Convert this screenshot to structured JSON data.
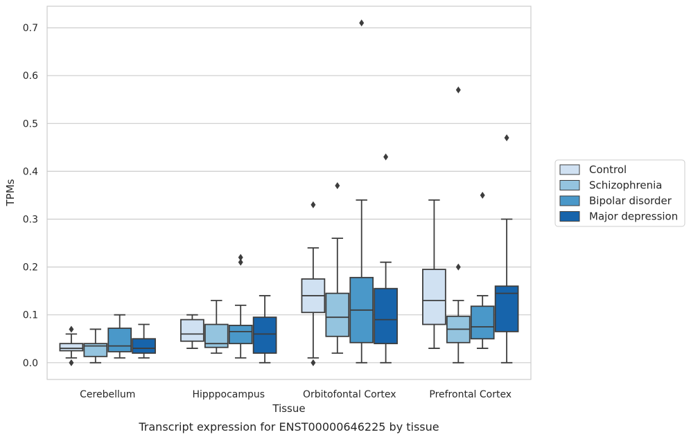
{
  "chart_data": {
    "type": "box",
    "caption": "Transcript expression for ENST00000646225 by tissue",
    "xlabel": "Tissue",
    "ylabel": "TPMs",
    "ylim": [
      -0.035,
      0.745
    ],
    "yticks": [
      "0.0",
      "0.1",
      "0.2",
      "0.3",
      "0.4",
      "0.5",
      "0.6",
      "0.7"
    ],
    "grid": "horizontal",
    "legend_position": "right",
    "categories": [
      "Cerebellum",
      "Hipppocampus",
      "Orbitofontal Cortex",
      "Prefrontal Cortex"
    ],
    "series": [
      {
        "name": "Control",
        "color": "#d0e1f2",
        "boxes": [
          {
            "whislo": 0.01,
            "q1": 0.025,
            "med": 0.03,
            "q3": 0.04,
            "whishi": 0.06,
            "fliers": [
              0.07,
              0.0
            ]
          },
          {
            "whislo": 0.03,
            "q1": 0.045,
            "med": 0.06,
            "q3": 0.09,
            "whishi": 0.1,
            "fliers": []
          },
          {
            "whislo": 0.01,
            "q1": 0.105,
            "med": 0.14,
            "q3": 0.175,
            "whishi": 0.24,
            "fliers": [
              0.33,
              0.0
            ]
          },
          {
            "whislo": 0.03,
            "q1": 0.08,
            "med": 0.13,
            "q3": 0.195,
            "whishi": 0.34,
            "fliers": []
          }
        ]
      },
      {
        "name": "Schizophrenia",
        "color": "#94c4df",
        "boxes": [
          {
            "whislo": 0.0,
            "q1": 0.013,
            "med": 0.035,
            "q3": 0.04,
            "whishi": 0.07,
            "fliers": []
          },
          {
            "whislo": 0.02,
            "q1": 0.032,
            "med": 0.04,
            "q3": 0.08,
            "whishi": 0.13,
            "fliers": []
          },
          {
            "whislo": 0.02,
            "q1": 0.055,
            "med": 0.095,
            "q3": 0.145,
            "whishi": 0.26,
            "fliers": [
              0.37
            ]
          },
          {
            "whislo": 0.0,
            "q1": 0.042,
            "med": 0.07,
            "q3": 0.097,
            "whishi": 0.13,
            "fliers": [
              0.57,
              0.2
            ]
          }
        ]
      },
      {
        "name": "Bipolar disorder",
        "color": "#4a98c9",
        "boxes": [
          {
            "whislo": 0.01,
            "q1": 0.023,
            "med": 0.035,
            "q3": 0.072,
            "whishi": 0.1,
            "fliers": []
          },
          {
            "whislo": 0.01,
            "q1": 0.04,
            "med": 0.065,
            "q3": 0.078,
            "whishi": 0.12,
            "fliers": [
              0.22,
              0.21
            ]
          },
          {
            "whislo": 0.0,
            "q1": 0.042,
            "med": 0.11,
            "q3": 0.178,
            "whishi": 0.34,
            "fliers": [
              0.71
            ]
          },
          {
            "whislo": 0.03,
            "q1": 0.05,
            "med": 0.075,
            "q3": 0.118,
            "whishi": 0.14,
            "fliers": [
              0.35
            ]
          }
        ]
      },
      {
        "name": "Major depression",
        "color": "#1764ab",
        "boxes": [
          {
            "whislo": 0.01,
            "q1": 0.02,
            "med": 0.03,
            "q3": 0.05,
            "whishi": 0.08,
            "fliers": []
          },
          {
            "whislo": 0.0,
            "q1": 0.02,
            "med": 0.06,
            "q3": 0.095,
            "whishi": 0.14,
            "fliers": []
          },
          {
            "whislo": 0.0,
            "q1": 0.04,
            "med": 0.09,
            "q3": 0.155,
            "whishi": 0.21,
            "fliers": [
              0.43
            ]
          },
          {
            "whislo": 0.0,
            "q1": 0.065,
            "med": 0.145,
            "q3": 0.16,
            "whishi": 0.3,
            "fliers": [
              0.47
            ]
          }
        ]
      }
    ]
  }
}
